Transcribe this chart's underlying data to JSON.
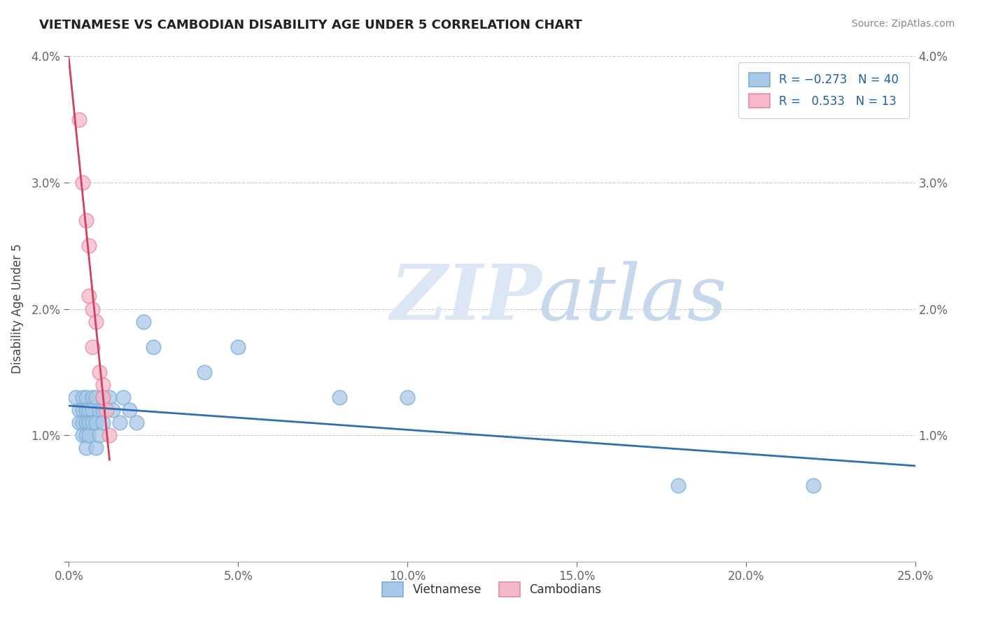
{
  "title": "VIETNAMESE VS CAMBODIAN DISABILITY AGE UNDER 5 CORRELATION CHART",
  "source": "Source: ZipAtlas.com",
  "ylabel": "Disability Age Under 5",
  "xlim": [
    0.0,
    0.25
  ],
  "ylim": [
    0.0,
    0.04
  ],
  "blue_color": "#a8c8e8",
  "blue_edge_color": "#7bafd4",
  "pink_color": "#f4b8c8",
  "pink_edge_color": "#e88aa0",
  "blue_line_color": "#3070b0",
  "pink_line_color": "#d04060",
  "background_color": "#ffffff",
  "grid_color": "#cccccc",
  "watermark_zip_color": "#dde4f0",
  "watermark_atlas_color": "#c8d4e8",
  "vietnamese_x": [
    0.002,
    0.003,
    0.003,
    0.004,
    0.004,
    0.004,
    0.004,
    0.005,
    0.005,
    0.005,
    0.005,
    0.005,
    0.006,
    0.006,
    0.006,
    0.007,
    0.007,
    0.007,
    0.008,
    0.008,
    0.008,
    0.009,
    0.009,
    0.01,
    0.01,
    0.01,
    0.012,
    0.013,
    0.015,
    0.016,
    0.018,
    0.02,
    0.022,
    0.025,
    0.04,
    0.05,
    0.08,
    0.1,
    0.18,
    0.22
  ],
  "vietnamese_y": [
    0.013,
    0.012,
    0.011,
    0.013,
    0.012,
    0.011,
    0.01,
    0.013,
    0.012,
    0.011,
    0.01,
    0.009,
    0.012,
    0.011,
    0.01,
    0.013,
    0.012,
    0.011,
    0.013,
    0.011,
    0.009,
    0.012,
    0.01,
    0.013,
    0.012,
    0.011,
    0.013,
    0.012,
    0.011,
    0.013,
    0.012,
    0.011,
    0.019,
    0.017,
    0.015,
    0.017,
    0.013,
    0.013,
    0.006,
    0.006
  ],
  "cambodian_x": [
    0.003,
    0.004,
    0.005,
    0.006,
    0.006,
    0.007,
    0.007,
    0.008,
    0.009,
    0.01,
    0.01,
    0.011,
    0.012
  ],
  "cambodian_y": [
    0.035,
    0.03,
    0.027,
    0.025,
    0.021,
    0.02,
    0.017,
    0.019,
    0.015,
    0.014,
    0.013,
    0.012,
    0.01
  ]
}
